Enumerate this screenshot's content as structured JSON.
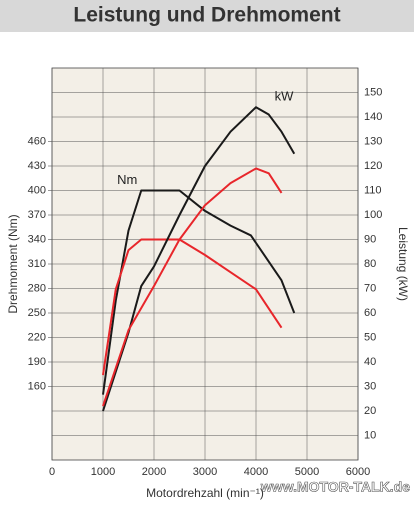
{
  "chart_data": {
    "type": "line",
    "title": "Leistung und Drehmoment",
    "x_label": "Motordrehzahl (min⁻¹)",
    "y_label": "Drehmoment (Nm)",
    "y2_label": "Leistung (kW)",
    "watermark": "www.MOTOR-TALK.de",
    "xlim": [
      0,
      6000
    ],
    "xticks": [
      0,
      1000,
      2000,
      3000,
      4000,
      5000,
      6000
    ],
    "ylim": [
      70,
      550
    ],
    "yticks": [
      160,
      190,
      220,
      250,
      280,
      310,
      340,
      370,
      400,
      430,
      460
    ],
    "y2lim": [
      0,
      160
    ],
    "y2ticks": [
      10,
      20,
      30,
      40,
      50,
      60,
      70,
      80,
      90,
      100,
      110,
      120,
      130,
      140,
      150
    ],
    "grid": true,
    "annotations": [
      {
        "text": "Nm",
        "series": 0
      },
      {
        "text": "kW",
        "series": 2
      }
    ],
    "series": [
      {
        "color": "#1a1a1a",
        "axis": "y",
        "x": [
          1000,
          1250,
          1500,
          1750,
          2500,
          3000,
          3500,
          3900,
          4500,
          4750
        ],
        "values": [
          150,
          265,
          351,
          400,
          400,
          375,
          357,
          345,
          290,
          250
        ]
      },
      {
        "color": "#e8262b",
        "axis": "y",
        "x": [
          1000,
          1250,
          1500,
          1750,
          2500,
          3000,
          3500,
          4000,
          4500
        ],
        "values": [
          174,
          279,
          327,
          340,
          340,
          321,
          300,
          279,
          232
        ]
      },
      {
        "color": "#1a1a1a",
        "axis": "y2",
        "x": [
          1000,
          1500,
          1750,
          2000,
          2500,
          3000,
          3500,
          4000,
          4250,
          4500,
          4750
        ],
        "values": [
          20,
          52,
          71,
          79,
          100,
          120,
          134,
          144,
          141,
          134,
          125
        ]
      },
      {
        "color": "#e8262b",
        "axis": "y2",
        "x": [
          1000,
          1500,
          2000,
          2500,
          3000,
          3500,
          4000,
          4250,
          4500
        ],
        "values": [
          22,
          53,
          71,
          90,
          104,
          113,
          119,
          117,
          109
        ]
      }
    ]
  }
}
